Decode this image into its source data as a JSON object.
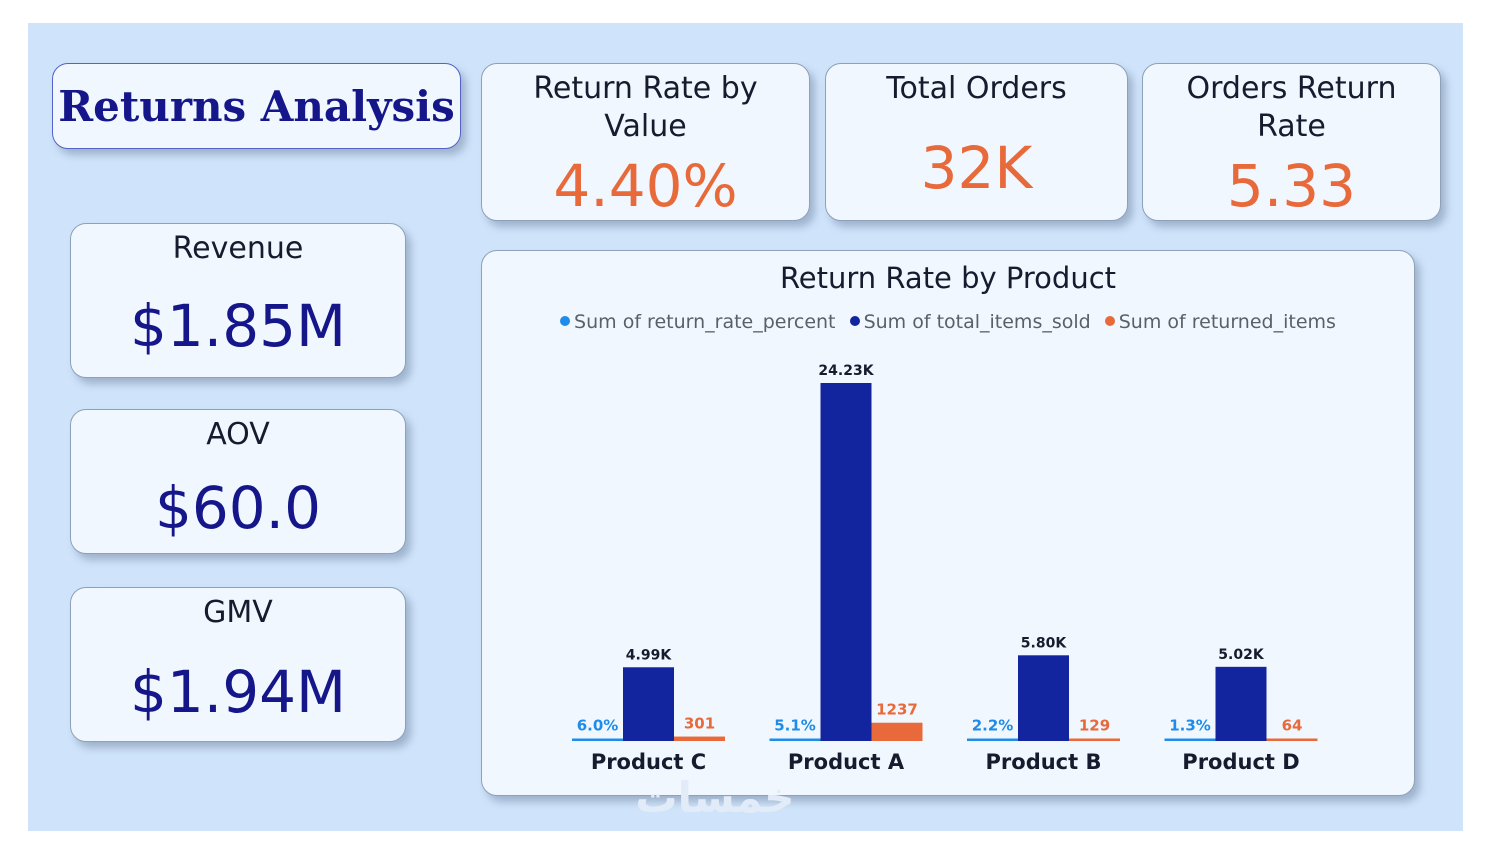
{
  "dashboard": {
    "title": "Returns Analysis"
  },
  "kpis": {
    "return_rate_by_value": {
      "label": "Return Rate by Value",
      "value": "4.40%"
    },
    "total_orders": {
      "label": "Total Orders",
      "value": "32K"
    },
    "orders_return_rate": {
      "label": "Orders Return Rate",
      "value": "5.33"
    },
    "revenue": {
      "label": "Revenue",
      "value": "$1.85M"
    },
    "aov": {
      "label": "AOV",
      "value": "$60.0"
    },
    "gmv": {
      "label": "GMV",
      "value": "$1.94M"
    }
  },
  "colors": {
    "accent_orange": "#e8693a",
    "navy": "#15168a",
    "series_light_blue": "#1e8ce8",
    "series_dark_blue": "#13249f",
    "series_orange": "#e8693a"
  },
  "chart_data": {
    "type": "bar",
    "title": "Return Rate by Product",
    "categories": [
      "Product C",
      "Product A",
      "Product B",
      "Product D"
    ],
    "series": [
      {
        "name": "Sum of return_rate_percent",
        "values": [
          6.0,
          5.1,
          2.2,
          1.3
        ],
        "labels": [
          "6.0%",
          "5.1%",
          "2.2%",
          "1.3%"
        ]
      },
      {
        "name": "Sum of total_items_sold",
        "values": [
          4990,
          24230,
          5800,
          5020
        ],
        "labels": [
          "4.99K",
          "24.23K",
          "5.80K",
          "5.02K"
        ]
      },
      {
        "name": "Sum of returned_items",
        "values": [
          301,
          1237,
          129,
          64
        ],
        "labels": [
          "301",
          "1237",
          "129",
          "64"
        ]
      }
    ],
    "legend_position": "top",
    "grid": false,
    "ylim": [
      0,
      24230
    ]
  }
}
